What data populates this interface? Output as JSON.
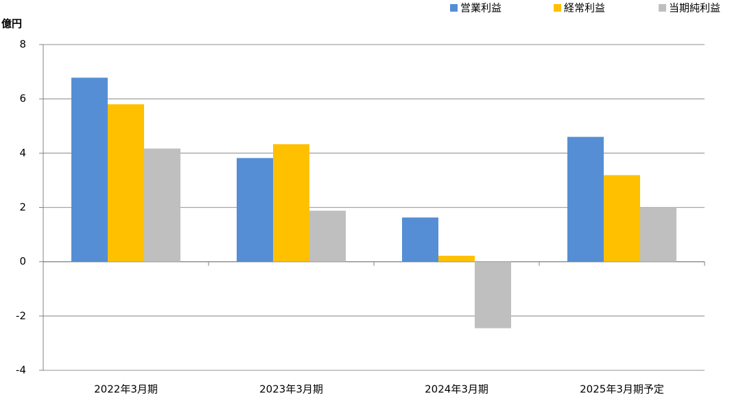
{
  "chart_data": {
    "type": "bar",
    "y_label": "億円",
    "categories": [
      "2022年3月期",
      "2023年3月期",
      "2024年3月期",
      "2025年3月期予定"
    ],
    "series": [
      {
        "name": "営業利益",
        "color": "#558ed5",
        "values": [
          6.78,
          3.82,
          1.63,
          4.6
        ]
      },
      {
        "name": "経常利益",
        "color": "#ffc000",
        "values": [
          5.8,
          4.33,
          0.22,
          3.19
        ]
      },
      {
        "name": "当期純利益",
        "color": "#bfbfbf",
        "values": [
          4.17,
          1.88,
          -2.45,
          2.0
        ]
      }
    ],
    "ylim": [
      -4,
      8
    ],
    "yticks": [
      -4,
      -2,
      0,
      2,
      4,
      6,
      8
    ],
    "grid": true,
    "legend": "top-right",
    "negative_tick_color": "#ff0000"
  }
}
